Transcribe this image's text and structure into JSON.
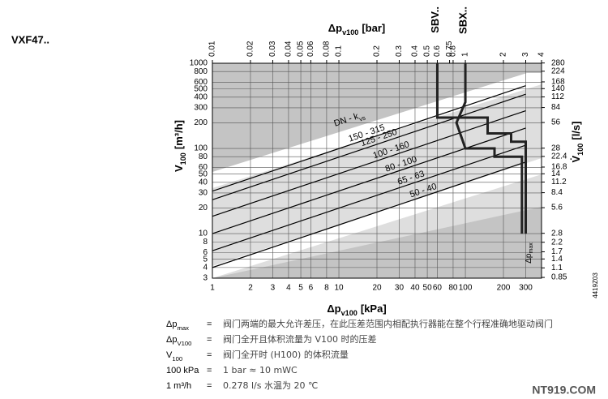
{
  "header": {
    "title": "VXF47..",
    "code": "4419Z03",
    "watermark": "NT919.COM"
  },
  "chart_data": {
    "type": "line",
    "xlog": true,
    "ylog": true,
    "grid": true,
    "color": "#000000",
    "x_label": {
      "main": "Δp",
      "sub": "v100",
      "unit": "[kPa]"
    },
    "x2_label": {
      "main": "Δp",
      "sub": "v100",
      "unit": "[bar]"
    },
    "y_label": {
      "main": "V",
      "sub": "100",
      "unit": "[m³/h]"
    },
    "y2_label": {
      "main": "V̇",
      "sub": "100",
      "unit": "[l/s]"
    },
    "xlim": [
      1,
      400
    ],
    "xticks": [
      1,
      2,
      3,
      4,
      5,
      6,
      8,
      10,
      20,
      30,
      40,
      50,
      60,
      80,
      100,
      200,
      300
    ],
    "x2lim": [
      0.01,
      4
    ],
    "x2ticks": [
      0.01,
      0.02,
      0.03,
      0.04,
      0.05,
      0.06,
      0.08,
      0.1,
      0.2,
      0.3,
      0.4,
      0.5,
      0.6,
      0.75,
      0.8,
      1,
      2,
      3,
      4
    ],
    "ylim": [
      3,
      1000
    ],
    "yticks": [
      1000,
      800,
      600,
      500,
      400,
      300,
      200,
      100,
      80,
      60,
      50,
      40,
      30,
      20,
      10,
      8,
      6,
      5,
      4,
      3
    ],
    "y2lim": [
      0.833,
      278
    ],
    "y2ticks": [
      280,
      224,
      168,
      140,
      112,
      84,
      56,
      28,
      22.4,
      16.8,
      14,
      11.2,
      8.4,
      5.6,
      2.8,
      2.2,
      1.7,
      1.4,
      1.1,
      0.85
    ],
    "series_header": {
      "main": "DN - k",
      "sub": "vs"
    },
    "x": [
      1,
      300
    ],
    "series": [
      {
        "name": "150 - 315",
        "values": [
          31.5,
          545.6
        ]
      },
      {
        "name": "125 - 250",
        "values": [
          25,
          433
        ]
      },
      {
        "name": "100 - 160",
        "values": [
          16,
          277.1
        ]
      },
      {
        "name": "80 - 100",
        "values": [
          10,
          173.2
        ]
      },
      {
        "name": "65 - 63",
        "values": [
          6.3,
          109.1
        ]
      },
      {
        "name": "50 - 40",
        "values": [
          4,
          69.3
        ]
      }
    ],
    "limit_curves": [
      {
        "name": "SBV..",
        "x": [
          60,
          60,
          150,
          150,
          230,
          230,
          300,
          300
        ],
        "values": [
          1000,
          230,
          230,
          150,
          150,
          120,
          120,
          10
        ]
      },
      {
        "name": "SBX..",
        "x": [
          100,
          100,
          85,
          100,
          170,
          170,
          280,
          280
        ],
        "values": [
          1000,
          350,
          200,
          100,
          100,
          80,
          80,
          10
        ]
      }
    ],
    "max_label": {
      "main": "Δp",
      "sub": "max"
    }
  },
  "legend_rows": [
    {
      "sym": "Δp",
      "sub": "max",
      "eq": "=",
      "text": "阀门两端的最大允许差压，在此压差范围内相配执行器能在整个行程准确地驱动阀门"
    },
    {
      "sym": "Δp",
      "sub": "V100",
      "eq": "=",
      "text": "阀门全开且体积流量为 V100 时的压差"
    },
    {
      "sym": "V",
      "sub": "100",
      "eq": "=",
      "text": "阀门全开时 (H100) 的体积流量"
    },
    {
      "sym": "100 kPa",
      "sub": "",
      "eq": "=",
      "text": "1 bar ≈ 10 mWC"
    },
    {
      "sym": "1 m³/h",
      "sub": "",
      "eq": "=",
      "text": "0.278 l/s 水温为 20 ℃"
    }
  ]
}
